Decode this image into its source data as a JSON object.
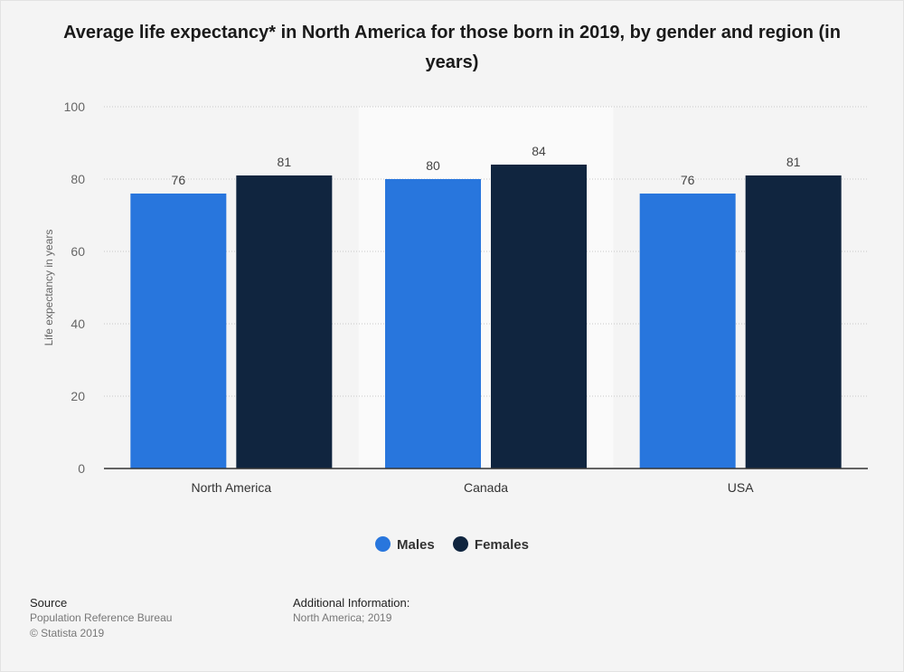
{
  "chart_data": {
    "type": "bar",
    "title": "Average life expectancy* in North America for those born in 2019, by gender and region (in years)",
    "xlabel": "",
    "ylabel": "Life expectancy in years",
    "categories": [
      "North America",
      "Canada",
      "USA"
    ],
    "series": [
      {
        "name": "Males",
        "color": "#2876dd",
        "values": [
          76,
          80,
          76
        ]
      },
      {
        "name": "Females",
        "color": "#10253f",
        "values": [
          81,
          84,
          81
        ]
      }
    ],
    "ylim": [
      0,
      100
    ],
    "yticks": [
      0,
      20,
      40,
      60,
      80,
      100
    ],
    "grid": true,
    "legend_position": "bottom-center",
    "highlighted_category": "Canada"
  },
  "footer": {
    "source_heading": "Source",
    "source_text": "Population Reference Bureau",
    "copyright": "© Statista 2019",
    "info_heading": "Additional Information:",
    "info_text": "North America; 2019"
  }
}
